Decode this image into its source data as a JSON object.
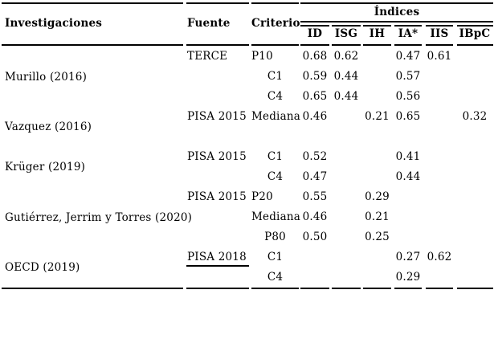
{
  "header": {
    "investigaciones": "Investigaciones",
    "fuente": "Fuente",
    "criterio": "Criterio",
    "indices": "Índices",
    "subcolumns": [
      "ID",
      "ISG",
      "IH",
      "IA*",
      "IIS",
      "IBpC"
    ]
  },
  "groups": [
    {
      "name": "Murillo (2016)",
      "fuente": "TERCE"
    },
    {
      "name": "Vazquez (2016)",
      "fuente": "PISA 2015"
    },
    {
      "name": "Krüger (2019)",
      "fuente": "PISA 2015"
    },
    {
      "name": "Gutiérrez, Jerrim y Torres (2020)",
      "fuente": "PISA 2015"
    },
    {
      "name": "OECD (2019)",
      "fuente": "PISA 2018"
    }
  ],
  "rows": [
    {
      "criterio": "P10",
      "values": [
        "0.68",
        "0.62",
        "",
        "0.47",
        "0.61",
        ""
      ]
    },
    {
      "criterio": "C1",
      "values": [
        "0.59",
        "0.44",
        "",
        "0.57",
        "",
        ""
      ]
    },
    {
      "criterio": "C4",
      "values": [
        "0.65",
        "0.44",
        "",
        "0.56",
        "",
        ""
      ]
    },
    {
      "criterio": "Mediana",
      "values": [
        "0.46",
        "",
        "0.21",
        "0.65",
        "",
        "0.32"
      ]
    },
    {
      "criterio": "C1",
      "values": [
        "0.52",
        "",
        "",
        "0.41",
        "",
        ""
      ]
    },
    {
      "criterio": "C4",
      "values": [
        "0.47",
        "",
        "",
        "0.44",
        "",
        ""
      ]
    },
    {
      "criterio": "P20",
      "values": [
        "0.55",
        "",
        "0.29",
        "",
        "",
        ""
      ]
    },
    {
      "criterio": "Mediana",
      "values": [
        "0.46",
        "",
        "0.21",
        "",
        "",
        ""
      ]
    },
    {
      "criterio": "P80",
      "values": [
        "0.50",
        "",
        "0.25",
        "",
        "",
        ""
      ]
    },
    {
      "criterio": "C1",
      "values": [
        "",
        "",
        "",
        "0.27",
        "0.62",
        ""
      ]
    },
    {
      "criterio": "C4",
      "values": [
        "",
        "",
        "",
        "0.29",
        "",
        ""
      ]
    }
  ]
}
